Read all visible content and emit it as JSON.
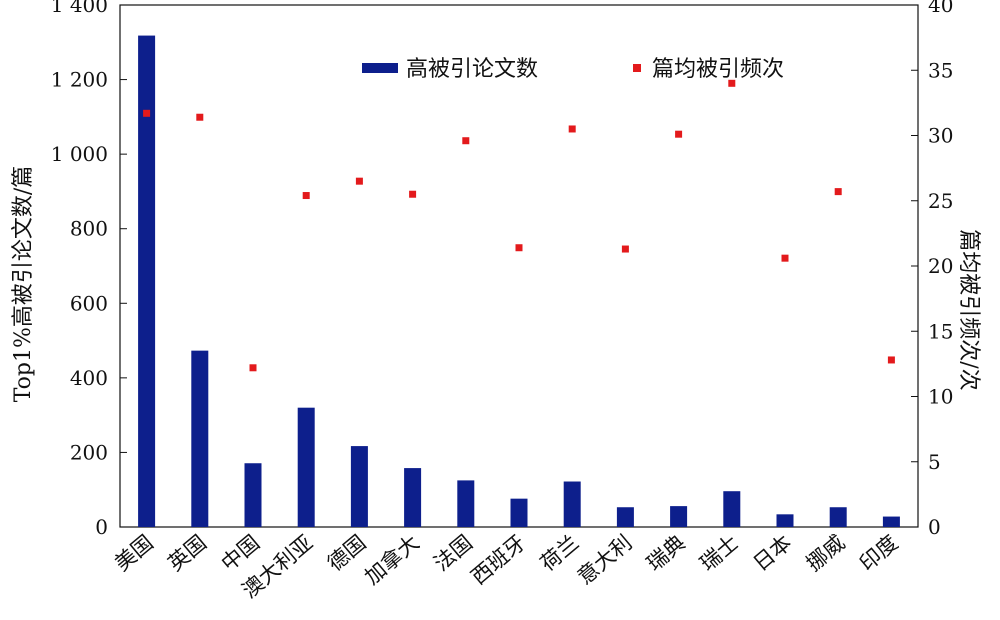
{
  "chart_data": {
    "type": "bar",
    "categories": [
      "美国",
      "英国",
      "中国",
      "澳大利亚",
      "德国",
      "加拿大",
      "法国",
      "西班牙",
      "荷兰",
      "意大利",
      "瑞典",
      "瑞士",
      "日本",
      "挪威",
      "印度"
    ],
    "series": [
      {
        "name": "高被引论文数",
        "type": "bar",
        "axis": "left",
        "color": "#0d1f8c",
        "values": [
          1318,
          473,
          171,
          320,
          217,
          158,
          125,
          76,
          122,
          53,
          56,
          96,
          34,
          53,
          28
        ]
      },
      {
        "name": "篇均被引频次",
        "type": "scatter",
        "axis": "right",
        "color": "#e31a1c",
        "values": [
          31.7,
          31.4,
          12.2,
          25.4,
          26.5,
          25.5,
          29.6,
          21.4,
          30.5,
          21.3,
          30.1,
          34.0,
          20.6,
          25.7,
          12.8
        ]
      }
    ],
    "ylabel": "Top1%高被引论文数/篇",
    "ylabel_right": "篇均被引频次/次",
    "xlabel": "",
    "ylim": [
      0,
      1400
    ],
    "ylim_right": [
      0,
      40
    ],
    "yticks": [
      0,
      200,
      400,
      600,
      800,
      1000,
      1200,
      1400
    ],
    "yticks_right": [
      0,
      5,
      10,
      15,
      20,
      25,
      30,
      35,
      40
    ],
    "ytick_labels": [
      "0",
      "200",
      "400",
      "600",
      "800",
      "1 000",
      "1 200",
      "1 400"
    ],
    "ytick_labels_right": [
      "0",
      "5",
      "10",
      "15",
      "20",
      "25",
      "30",
      "35",
      "40"
    ],
    "grid": false,
    "legend_position": "top-center"
  }
}
